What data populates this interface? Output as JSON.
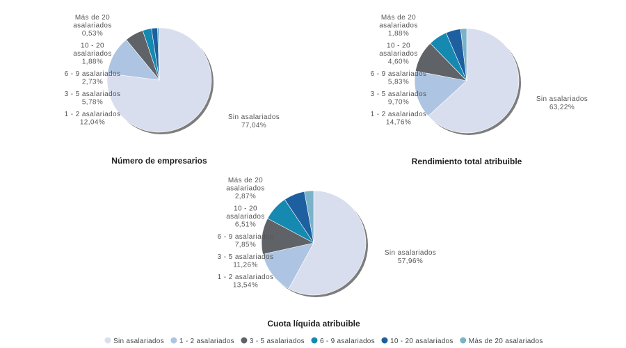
{
  "chart_data": [
    {
      "type": "pie",
      "title": "Número de empresarios",
      "categories": [
        "Sin asalariados",
        "1 - 2 asalariados",
        "3 - 5 asalariados",
        "6 - 9 asalariados",
        "10 - 20 asalariados",
        "Más de 20 asalariados"
      ],
      "values": [
        77.04,
        12.04,
        5.78,
        2.73,
        1.88,
        0.53
      ],
      "value_labels": [
        "77,04%",
        "12,04%",
        "5,78%",
        "2,73%",
        "1,88%",
        "0,53%"
      ]
    },
    {
      "type": "pie",
      "title": "Rendimiento total atribuible",
      "categories": [
        "Sin asalariados",
        "1 - 2 asalariados",
        "3 - 5 asalariados",
        "6 - 9 asalariados",
        "10 - 20 asalariados",
        "Más de 20 asalariados"
      ],
      "values": [
        63.22,
        14.76,
        9.7,
        5.83,
        4.6,
        1.88
      ],
      "value_labels": [
        "63,22%",
        "14,76%",
        "9,70%",
        "5,83%",
        "4,60%",
        "1,88%"
      ]
    },
    {
      "type": "pie",
      "title": "Cuota líquida atribuible",
      "categories": [
        "Sin asalariados",
        "1 - 2 asalariados",
        "3 - 5 asalariados",
        "6 - 9 asalariados",
        "10 - 20 asalariados",
        "Más de 20 asalariados"
      ],
      "values": [
        57.96,
        13.54,
        11.26,
        7.85,
        6.51,
        2.87
      ],
      "value_labels": [
        "57,96%",
        "13,54%",
        "11,26%",
        "7,85%",
        "6,51%",
        "2,87%"
      ]
    }
  ],
  "legend": {
    "placement": "bottom",
    "items": [
      "Sin asalariados",
      "1 - 2 asalariados",
      "3 - 5 asalariados",
      "6 - 9 asalariados",
      "10 - 20 asalariados",
      "Más de 20 asalariados"
    ]
  },
  "colors": [
    "#d9deef",
    "#adc4e2",
    "#5f6266",
    "#1589b0",
    "#1e5fa0",
    "#7ab3c9"
  ]
}
